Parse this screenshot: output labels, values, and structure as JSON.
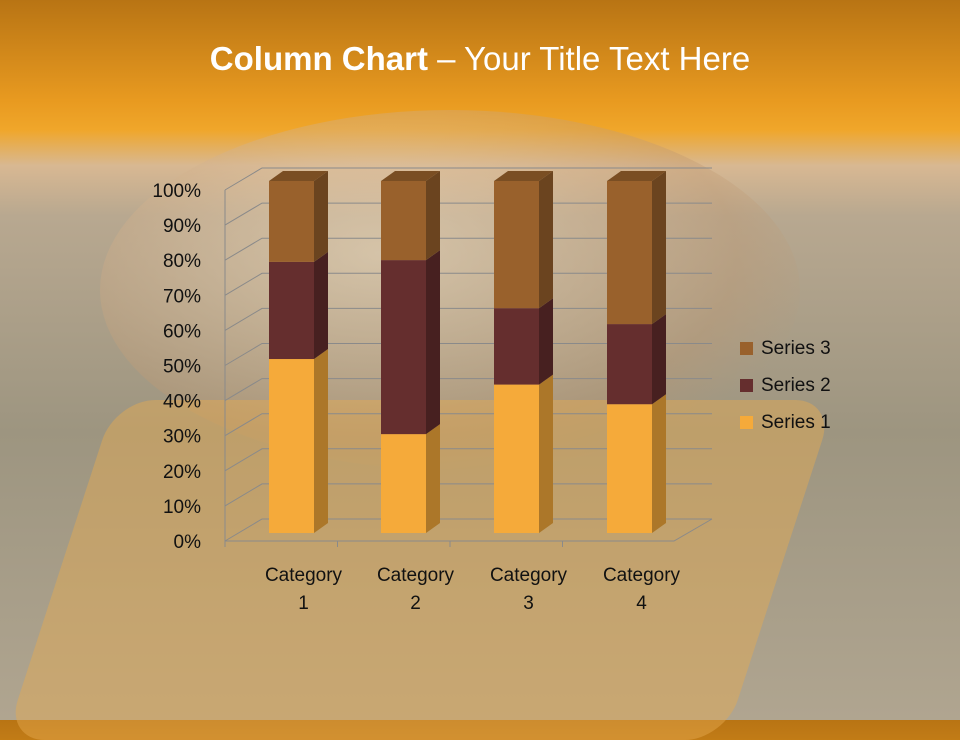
{
  "slide": {
    "title_bold": "Column Chart",
    "title_rest": " – Your Title Text Here"
  },
  "chart_data": {
    "type": "bar",
    "stacking": "percent",
    "three_d": true,
    "categories": [
      "Category 1",
      "Category 2",
      "Category 3",
      "Category 4"
    ],
    "series": [
      {
        "name": "Series 1",
        "values": [
          4.3,
          2.5,
          3.5,
          4.5
        ],
        "color": "#f5aa3a"
      },
      {
        "name": "Series 2",
        "values": [
          2.4,
          4.4,
          1.8,
          2.8
        ],
        "color": "#652e2e"
      },
      {
        "name": "Series 3",
        "values": [
          2,
          2,
          3,
          5
        ],
        "color": "#99612c"
      }
    ],
    "y_ticks": [
      "0%",
      "10%",
      "20%",
      "30%",
      "40%",
      "50%",
      "60%",
      "70%",
      "80%",
      "90%",
      "100%"
    ],
    "ylim": [
      0,
      100
    ],
    "grid": true,
    "legend": "right"
  }
}
